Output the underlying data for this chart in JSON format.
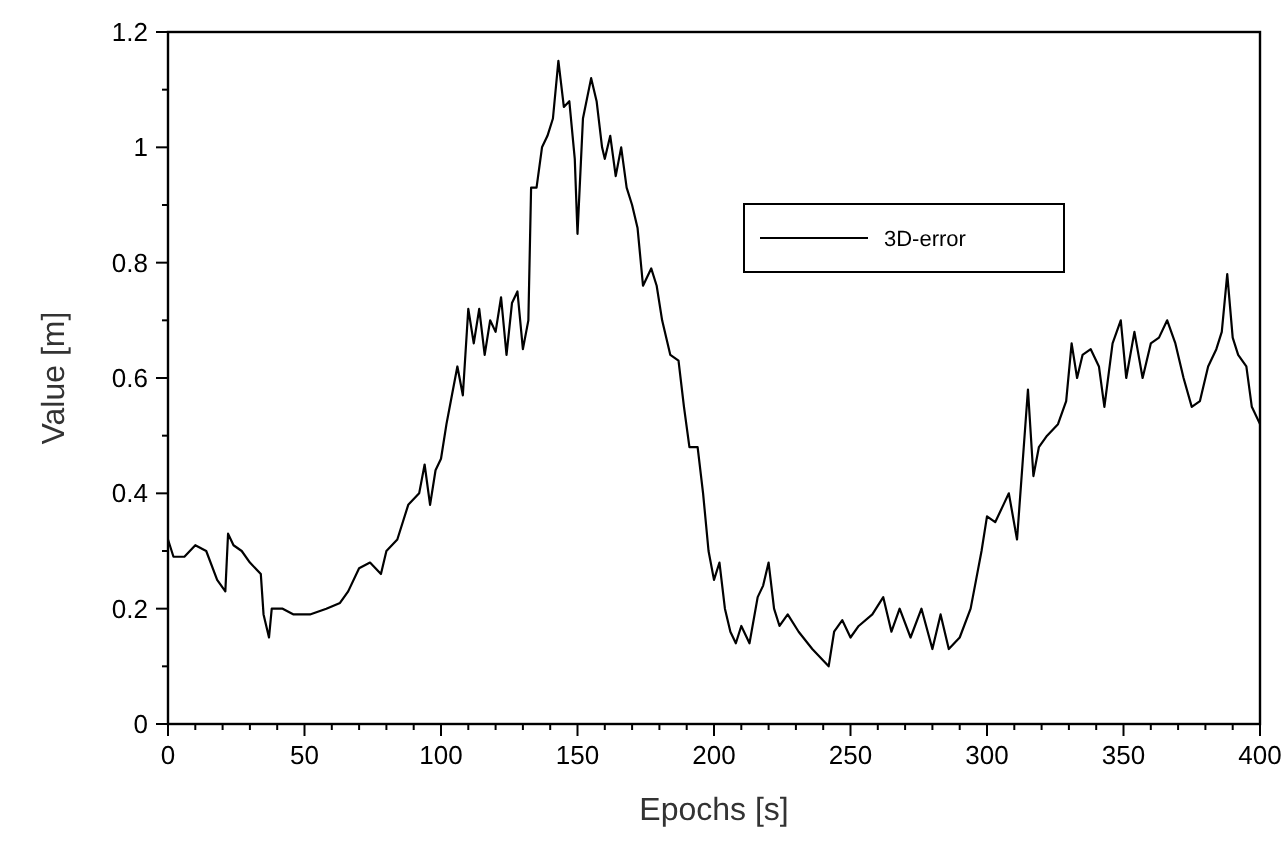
{
  "chart_data": {
    "type": "line",
    "xlabel": "Epochs [s]",
    "ylabel": "Value [m]",
    "xlim": [
      0,
      400
    ],
    "ylim": [
      0,
      1.2
    ],
    "xticks": [
      0,
      {
        "value": 10,
        "label": null
      },
      {
        "value": 20,
        "label": null
      },
      {
        "value": 30,
        "label": null
      },
      {
        "value": 40,
        "label": null
      },
      50,
      {
        "value": 60,
        "label": null
      },
      {
        "value": 70,
        "label": null
      },
      {
        "value": 80,
        "label": null
      },
      {
        "value": 90,
        "label": null
      },
      100,
      {
        "value": 110,
        "label": null
      },
      {
        "value": 120,
        "label": null
      },
      {
        "value": 130,
        "label": null
      },
      {
        "value": 140,
        "label": null
      },
      150,
      {
        "value": 160,
        "label": null
      },
      {
        "value": 170,
        "label": null
      },
      {
        "value": 180,
        "label": null
      },
      {
        "value": 190,
        "label": null
      },
      200,
      {
        "value": 210,
        "label": null
      },
      {
        "value": 220,
        "label": null
      },
      {
        "value": 230,
        "label": null
      },
      {
        "value": 240,
        "label": null
      },
      250,
      {
        "value": 260,
        "label": null
      },
      {
        "value": 270,
        "label": null
      },
      {
        "value": 280,
        "label": null
      },
      {
        "value": 290,
        "label": null
      },
      300,
      {
        "value": 310,
        "label": null
      },
      {
        "value": 320,
        "label": null
      },
      {
        "value": 330,
        "label": null
      },
      {
        "value": 340,
        "label": null
      },
      350,
      {
        "value": 360,
        "label": null
      },
      {
        "value": 370,
        "label": null
      },
      {
        "value": 380,
        "label": null
      },
      {
        "value": 390,
        "label": null
      },
      400
    ],
    "yticks": [
      0,
      {
        "value": 0.1,
        "label": null
      },
      0.2,
      {
        "value": 0.3,
        "label": null
      },
      0.4,
      {
        "value": 0.5,
        "label": null
      },
      0.6,
      {
        "value": 0.7,
        "label": null
      },
      0.8,
      {
        "value": 0.9,
        "label": null
      },
      1,
      {
        "value": 1.1,
        "label": null
      },
      1.2
    ],
    "legend": "top right",
    "grid": false,
    "marker": "none",
    "line_style": "solid",
    "series": [
      {
        "name": "3D-error",
        "color": "#000000",
        "x": [
          0,
          2,
          6,
          10,
          14,
          18,
          21,
          22,
          24,
          27,
          30,
          34,
          35,
          37,
          38,
          42,
          46,
          52,
          58,
          63,
          66,
          70,
          74,
          78,
          80,
          84,
          88,
          92,
          94,
          96,
          98,
          100,
          102,
          104,
          106,
          108,
          110,
          112,
          114,
          116,
          118,
          120,
          122,
          124,
          126,
          128,
          130,
          132,
          133,
          135,
          137,
          139,
          141,
          143,
          145,
          147,
          149,
          150,
          152,
          155,
          157,
          159,
          160,
          162,
          164,
          166,
          168,
          170,
          172,
          174,
          177,
          179,
          181,
          184,
          187,
          189,
          191,
          194,
          196,
          198,
          200,
          202,
          204,
          206,
          208,
          210,
          213,
          216,
          218,
          220,
          222,
          224,
          227,
          231,
          236,
          240,
          242,
          244,
          247,
          250,
          253,
          258,
          262,
          265,
          268,
          272,
          276,
          280,
          283,
          286,
          290,
          294,
          296,
          298,
          300,
          303,
          306,
          308,
          311,
          313,
          315,
          317,
          319,
          322,
          326,
          329,
          331,
          333,
          335,
          338,
          341,
          343,
          346,
          349,
          351,
          354,
          357,
          360,
          363,
          366,
          369,
          372,
          375,
          378,
          381,
          384,
          386,
          388,
          390,
          392,
          395,
          397,
          400
        ],
        "values": [
          0.32,
          0.29,
          0.29,
          0.31,
          0.3,
          0.25,
          0.23,
          0.33,
          0.31,
          0.3,
          0.28,
          0.26,
          0.19,
          0.15,
          0.2,
          0.2,
          0.19,
          0.19,
          0.2,
          0.21,
          0.23,
          0.27,
          0.28,
          0.26,
          0.3,
          0.32,
          0.38,
          0.4,
          0.45,
          0.38,
          0.44,
          0.46,
          0.52,
          0.57,
          0.62,
          0.57,
          0.72,
          0.66,
          0.72,
          0.64,
          0.7,
          0.68,
          0.74,
          0.64,
          0.73,
          0.75,
          0.65,
          0.7,
          0.93,
          0.93,
          1,
          1.02,
          1.05,
          1.15,
          1.07,
          1.08,
          0.98,
          0.85,
          1.05,
          1.12,
          1.08,
          1,
          0.98,
          1.02,
          0.95,
          1,
          0.93,
          0.9,
          0.86,
          0.76,
          0.79,
          0.76,
          0.7,
          0.64,
          0.63,
          0.55,
          0.48,
          0.48,
          0.4,
          0.3,
          0.25,
          0.28,
          0.2,
          0.16,
          0.14,
          0.17,
          0.14,
          0.22,
          0.24,
          0.28,
          0.2,
          0.17,
          0.19,
          0.16,
          0.13,
          0.11,
          0.1,
          0.16,
          0.18,
          0.15,
          0.17,
          0.19,
          0.22,
          0.16,
          0.2,
          0.15,
          0.2,
          0.13,
          0.19,
          0.13,
          0.15,
          0.2,
          0.25,
          0.3,
          0.36,
          0.35,
          0.38,
          0.4,
          0.32,
          0.45,
          0.58,
          0.43,
          0.48,
          0.5,
          0.52,
          0.56,
          0.66,
          0.6,
          0.64,
          0.65,
          0.62,
          0.55,
          0.66,
          0.7,
          0.6,
          0.68,
          0.6,
          0.66,
          0.67,
          0.7,
          0.66,
          0.6,
          0.55,
          0.56,
          0.62,
          0.65,
          0.68,
          0.78,
          0.67,
          0.64,
          0.62,
          0.55,
          0.52
        ]
      }
    ]
  }
}
